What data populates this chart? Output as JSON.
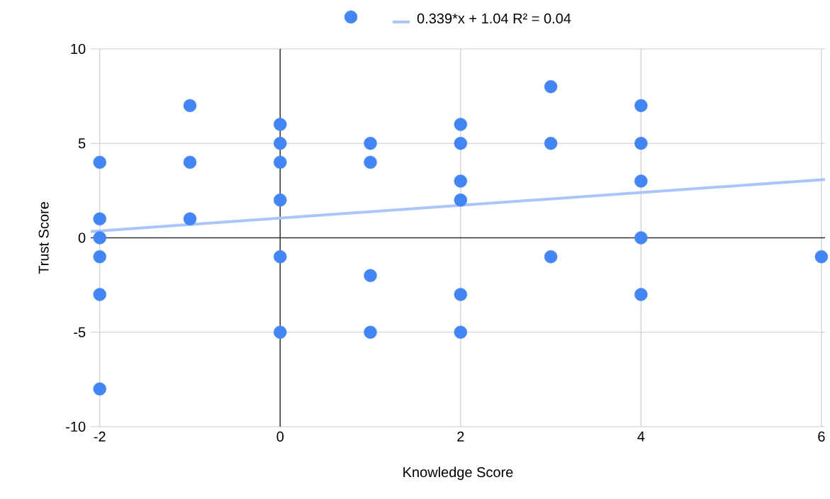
{
  "chart_data": {
    "type": "scatter",
    "xlabel": "Knowledge Score",
    "ylabel": "Trust Score",
    "series": [
      {
        "marker": "circle",
        "color": "#4285f4",
        "x": [
          -2,
          -2,
          -2,
          -2,
          -2,
          -2,
          -1,
          -1,
          -1,
          0,
          0,
          0,
          0,
          0,
          0,
          1,
          1,
          1,
          1,
          2,
          2,
          2,
          2,
          2,
          2,
          3,
          3,
          3,
          4,
          4,
          4,
          4,
          4,
          6
        ],
        "values": [
          4,
          1,
          0,
          -1,
          -3,
          -8,
          7,
          4,
          1,
          6,
          5,
          4,
          2,
          -1,
          -5,
          5,
          4,
          -2,
          -5,
          6,
          5,
          3,
          2,
          -3,
          -5,
          8,
          5,
          -1,
          7,
          5,
          3,
          0,
          -3,
          -1
        ]
      },
      {
        "type": "line",
        "name": "0.339*x + 1.04 R² = 0.04",
        "color": "#aac6f8",
        "x": [
          -2.1,
          6.04
        ],
        "values": [
          0.33,
          3.09
        ]
      }
    ],
    "xlim": [
      -2.1,
      6.04
    ],
    "ylim": [
      -10,
      10
    ],
    "xticks": [
      -2,
      0,
      2,
      4,
      6
    ],
    "yticks": [
      -10,
      -5,
      0,
      5,
      10
    ],
    "grid": true,
    "legend": "top"
  }
}
